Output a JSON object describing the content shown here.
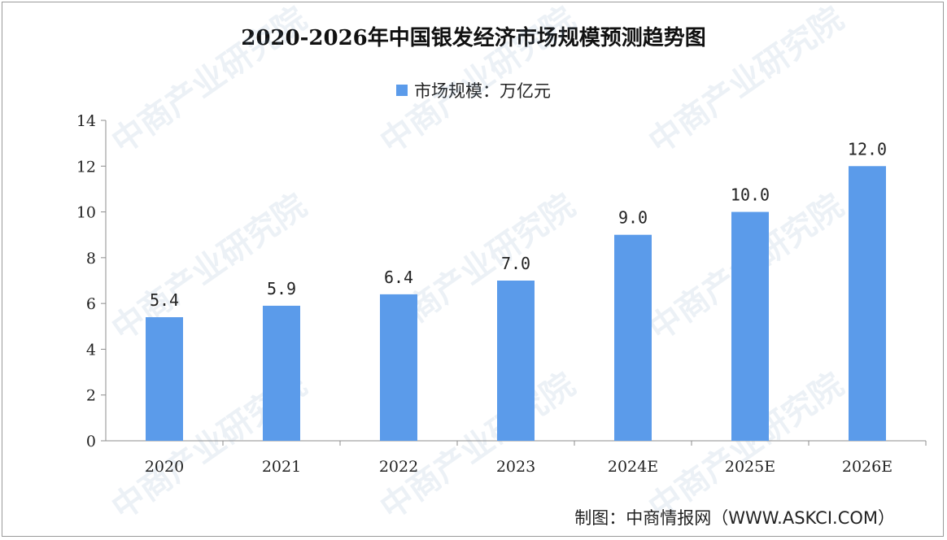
{
  "chart_data": {
    "type": "bar",
    "title": "2020-2026年中国银发经济市场规模预测趋势图",
    "legend": "市场规模：万亿元",
    "categories": [
      "2020",
      "2021",
      "2022",
      "2023",
      "2024E",
      "2025E",
      "2026E"
    ],
    "values": [
      5.4,
      5.9,
      6.4,
      7.0,
      9.0,
      10.0,
      12.0
    ],
    "value_labels": [
      "5.4",
      "5.9",
      "6.4",
      "7.0",
      "9.0",
      "10.0",
      "12.0"
    ],
    "yticks": [
      "0",
      "2",
      "4",
      "6",
      "8",
      "10",
      "12",
      "14"
    ],
    "ylim": [
      0,
      14
    ],
    "bar_color": "#5b9bea",
    "grid": false,
    "legend_position": "top"
  },
  "source": "制图：中商情报网（WWW.ASKCI.COM）",
  "watermark": "中商产业研究院"
}
